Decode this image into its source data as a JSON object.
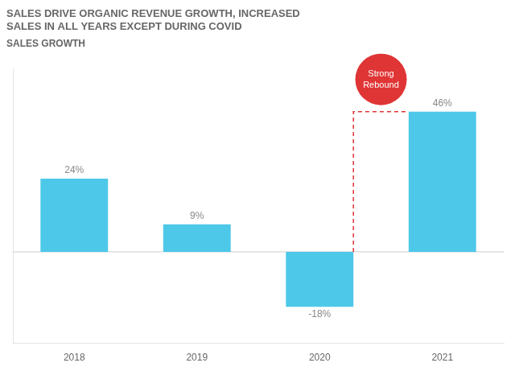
{
  "chart_data": {
    "type": "bar",
    "title": [
      "SALES DRIVE ORGANIC REVENUE GROWTH, INCREASED",
      "SALES IN ALL YEARS EXCEPT DURING COVID"
    ],
    "subtitle": "SALES GROWTH",
    "categories": [
      "2018",
      "2019",
      "2020",
      "2021"
    ],
    "values": [
      24,
      9,
      -18,
      46
    ],
    "value_labels": [
      "24%",
      "9%",
      "-18%",
      "46%"
    ],
    "data_labels": true,
    "color": "#4DC8E8",
    "ylim": [
      -30,
      60
    ],
    "grid": false,
    "tick_labels": "x",
    "annotations": [
      {
        "text": "Strong Rebound",
        "color": "#e03535"
      }
    ]
  }
}
